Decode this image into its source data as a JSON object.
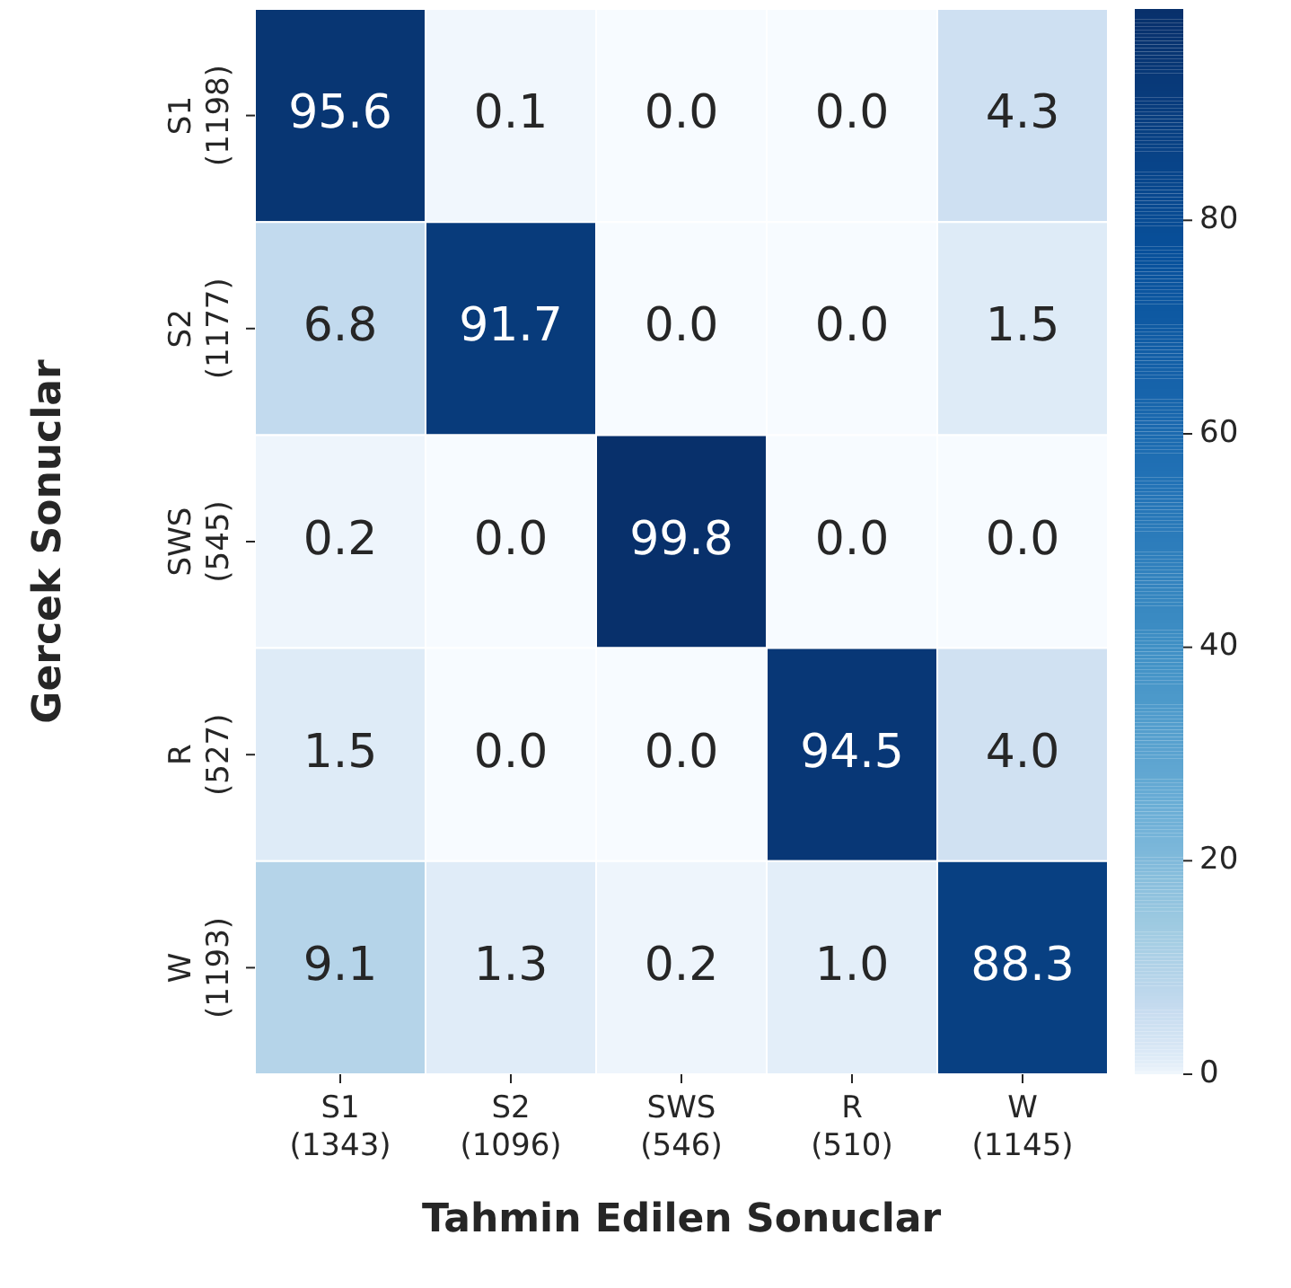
{
  "chart_data": {
    "type": "heatmap",
    "xlabel": "Tahmin Edilen Sonuclar",
    "ylabel": "Gercek Sonuclar",
    "categories": [
      "S1\n(1343)",
      "S2\n(1096)",
      "SWS\n(546)",
      "R\n(510)",
      "W\n(1145)"
    ],
    "y_categories": [
      "S1\n(1198)",
      "S2\n(1177)",
      "SWS\n(545)",
      "R\n(527)",
      "W\n(1193)"
    ],
    "cells": [
      [
        95.6,
        0.1,
        0.0,
        0.0,
        4.3
      ],
      [
        6.8,
        91.7,
        0.0,
        0.0,
        1.5
      ],
      [
        0.2,
        0.0,
        99.8,
        0.0,
        0.0
      ],
      [
        1.5,
        0.0,
        0.0,
        94.5,
        4.0
      ],
      [
        9.1,
        1.3,
        0.2,
        1.0,
        88.3
      ]
    ],
    "cell_labels": [
      [
        "95.6",
        "0.1",
        "0.0",
        "0.0",
        "4.3"
      ],
      [
        "6.8",
        "91.7",
        "0.0",
        "0.0",
        "1.5"
      ],
      [
        "0.2",
        "0.0",
        "99.8",
        "0.0",
        "0.0"
      ],
      [
        "1.5",
        "0.0",
        "0.0",
        "94.5",
        "4.0"
      ],
      [
        "9.1",
        "1.3",
        "0.2",
        "1.0",
        "88.3"
      ]
    ],
    "clim": [
      0,
      99.8
    ],
    "cticks": [
      0,
      20,
      40,
      60,
      80
    ]
  }
}
